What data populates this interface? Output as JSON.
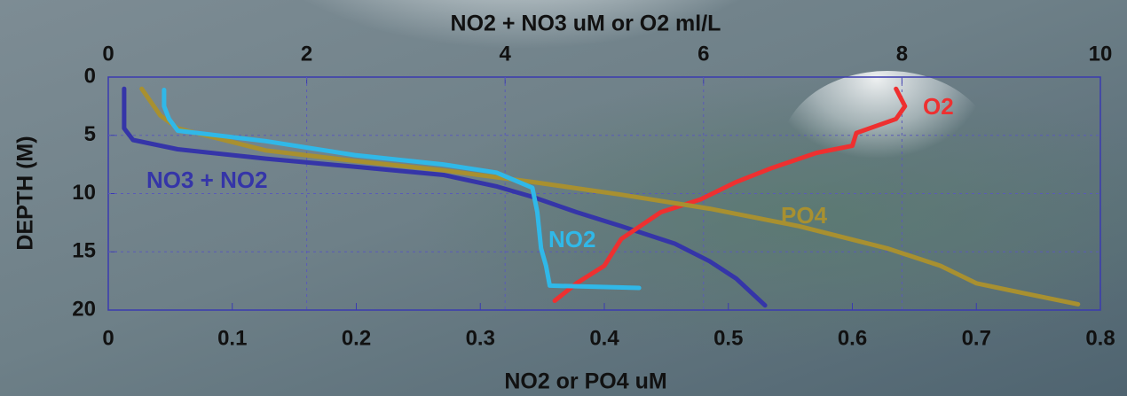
{
  "chart_data": {
    "type": "line",
    "x_label": "NO2 or PO4 uM",
    "x2_label": "NO2 + NO3 uM or O2 ml/L",
    "y_label": "DEPTH (M)",
    "xlim": [
      0,
      0.8
    ],
    "xticks": [
      0,
      0.1,
      0.2,
      0.3,
      0.4,
      0.5,
      0.6,
      0.7,
      0.8
    ],
    "x2lim": [
      0,
      10
    ],
    "x2ticks": [
      0,
      2,
      4,
      6,
      8,
      10
    ],
    "ylim": [
      0,
      20
    ],
    "yticks": [
      0,
      5,
      10,
      15,
      20
    ],
    "y_inverted": true,
    "grid": true,
    "series": [
      {
        "name": "NO3 + NO2",
        "color": "#3535a8",
        "axis": "x2",
        "x": [
          0.16,
          0.16,
          0.25,
          0.7,
          1.59,
          2.49,
          3.38,
          3.92,
          4.28,
          4.72,
          5.17,
          5.71,
          6.06,
          6.33,
          6.62
        ],
        "y": [
          1,
          4.4,
          5.4,
          6.2,
          7,
          7.7,
          8.4,
          9.4,
          10.3,
          11.6,
          12.8,
          14.3,
          15.8,
          17.3,
          19.6
        ]
      },
      {
        "name": "O2",
        "color": "#ee3030",
        "axis": "x2",
        "x": [
          7.94,
          8.03,
          7.94,
          7.54,
          7.5,
          7.14,
          6.69,
          6.33,
          5.97,
          5.57,
          5.17,
          5.0,
          4.72,
          4.5
        ],
        "y": [
          1,
          2.5,
          3.6,
          4.8,
          5.9,
          6.5,
          7.8,
          9,
          10.5,
          11.6,
          13.9,
          16.2,
          17.7,
          19.2
        ]
      },
      {
        "name": "PO4",
        "color": "#a89030",
        "x": [
          0.027,
          0.042,
          0.056,
          0.127,
          0.199,
          0.27,
          0.342,
          0.414,
          0.485,
          0.557,
          0.628,
          0.671,
          0.7,
          0.736,
          0.782
        ],
        "y": [
          1,
          3.3,
          4.4,
          6.3,
          7.2,
          8,
          9,
          10.1,
          11.3,
          12.8,
          14.7,
          16.2,
          17.7,
          18.5,
          19.5
        ]
      },
      {
        "name": "NO2",
        "color": "#30b8e8",
        "x": [
          0.045,
          0.045,
          0.049,
          0.056,
          0.127,
          0.199,
          0.27,
          0.313,
          0.342,
          0.346,
          0.349,
          0.353,
          0.356,
          0.428
        ],
        "y": [
          1.1,
          2.5,
          3.6,
          4.6,
          5.5,
          6.7,
          7.5,
          8.2,
          9.5,
          11.6,
          14.7,
          16.2,
          17.9,
          18.1
        ]
      }
    ]
  }
}
